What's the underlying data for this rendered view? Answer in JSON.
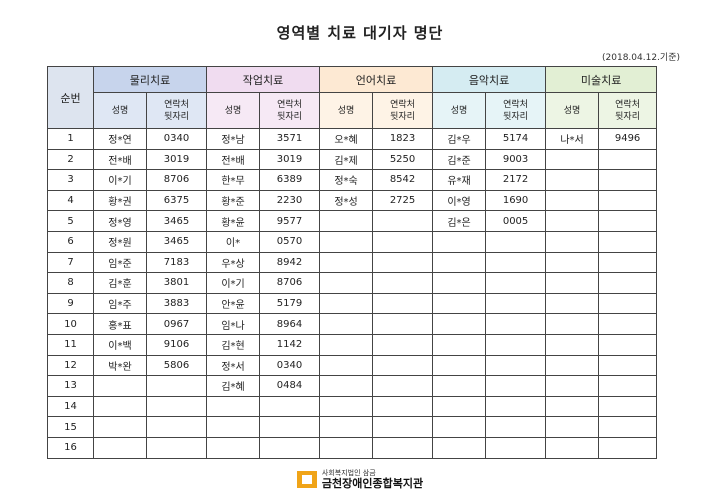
{
  "title": "영역별 치료 대기자 명단",
  "date": "(2018.04.12.기준)",
  "header": {
    "seq_label": "순번",
    "groups": [
      "물리치료",
      "작업치료",
      "언어치료",
      "음악치료",
      "미술치료"
    ],
    "sub_name": "성명",
    "sub_phone_line1": "연락처",
    "sub_phone_line2": "뒷자리"
  },
  "rows": [
    {
      "n": "1",
      "c": [
        [
          "정*연",
          "0340"
        ],
        [
          "정*남",
          "3571"
        ],
        [
          "오*혜",
          "1823"
        ],
        [
          "김*우",
          "5174"
        ],
        [
          "나*서",
          "9496"
        ]
      ]
    },
    {
      "n": "2",
      "c": [
        [
          "전*배",
          "3019"
        ],
        [
          "전*배",
          "3019"
        ],
        [
          "김*제",
          "5250"
        ],
        [
          "김*준",
          "9003"
        ],
        [
          "",
          ""
        ]
      ]
    },
    {
      "n": "3",
      "c": [
        [
          "이*기",
          "8706"
        ],
        [
          "한*무",
          "6389"
        ],
        [
          "정*숙",
          "8542"
        ],
        [
          "유*재",
          "2172"
        ],
        [
          "",
          ""
        ]
      ]
    },
    {
      "n": "4",
      "c": [
        [
          "황*권",
          "6375"
        ],
        [
          "황*준",
          "2230"
        ],
        [
          "정*성",
          "2725"
        ],
        [
          "이*영",
          "1690"
        ],
        [
          "",
          ""
        ]
      ]
    },
    {
      "n": "5",
      "c": [
        [
          "정*영",
          "3465"
        ],
        [
          "황*윤",
          "9577"
        ],
        [
          "",
          ""
        ],
        [
          "김*은",
          "0005"
        ],
        [
          "",
          ""
        ]
      ]
    },
    {
      "n": "6",
      "c": [
        [
          "정*원",
          "3465"
        ],
        [
          "이*",
          "0570"
        ],
        [
          "",
          ""
        ],
        [
          "",
          ""
        ],
        [
          "",
          ""
        ]
      ]
    },
    {
      "n": "7",
      "c": [
        [
          "임*준",
          "7183"
        ],
        [
          "우*상",
          "8942"
        ],
        [
          "",
          ""
        ],
        [
          "",
          ""
        ],
        [
          "",
          ""
        ]
      ]
    },
    {
      "n": "8",
      "c": [
        [
          "김*훈",
          "3801"
        ],
        [
          "이*기",
          "8706"
        ],
        [
          "",
          ""
        ],
        [
          "",
          ""
        ],
        [
          "",
          ""
        ]
      ]
    },
    {
      "n": "9",
      "c": [
        [
          "임*주",
          "3883"
        ],
        [
          "안*윤",
          "5179"
        ],
        [
          "",
          ""
        ],
        [
          "",
          ""
        ],
        [
          "",
          ""
        ]
      ]
    },
    {
      "n": "10",
      "c": [
        [
          "홍*표",
          "0967"
        ],
        [
          "임*나",
          "8964"
        ],
        [
          "",
          ""
        ],
        [
          "",
          ""
        ],
        [
          "",
          ""
        ]
      ]
    },
    {
      "n": "11",
      "c": [
        [
          "이*백",
          "9106"
        ],
        [
          "김*현",
          "1142"
        ],
        [
          "",
          ""
        ],
        [
          "",
          ""
        ],
        [
          "",
          ""
        ]
      ]
    },
    {
      "n": "12",
      "c": [
        [
          "박*완",
          "5806"
        ],
        [
          "정*서",
          "0340"
        ],
        [
          "",
          ""
        ],
        [
          "",
          ""
        ],
        [
          "",
          ""
        ]
      ]
    },
    {
      "n": "13",
      "c": [
        [
          "",
          ""
        ],
        [
          "김*혜",
          "0484"
        ],
        [
          "",
          ""
        ],
        [
          "",
          ""
        ],
        [
          "",
          ""
        ]
      ]
    },
    {
      "n": "14",
      "c": [
        [
          "",
          ""
        ],
        [
          "",
          ""
        ],
        [
          "",
          ""
        ],
        [
          "",
          ""
        ],
        [
          "",
          ""
        ]
      ]
    },
    {
      "n": "15",
      "c": [
        [
          "",
          ""
        ],
        [
          "",
          ""
        ],
        [
          "",
          ""
        ],
        [
          "",
          ""
        ],
        [
          "",
          ""
        ]
      ]
    },
    {
      "n": "16",
      "c": [
        [
          "",
          ""
        ],
        [
          "",
          ""
        ],
        [
          "",
          ""
        ],
        [
          "",
          ""
        ],
        [
          "",
          ""
        ]
      ]
    }
  ],
  "footer": {
    "small": "사회복지법인 삼금",
    "big": "금천장애인종합복지관",
    "logo_color": "#f0a418"
  },
  "colors": {
    "physical": "#c7d4ec",
    "occupational": "#f0dcf0",
    "speech": "#fde9d3",
    "music": "#d5ecf2",
    "art": "#e2efd4"
  }
}
